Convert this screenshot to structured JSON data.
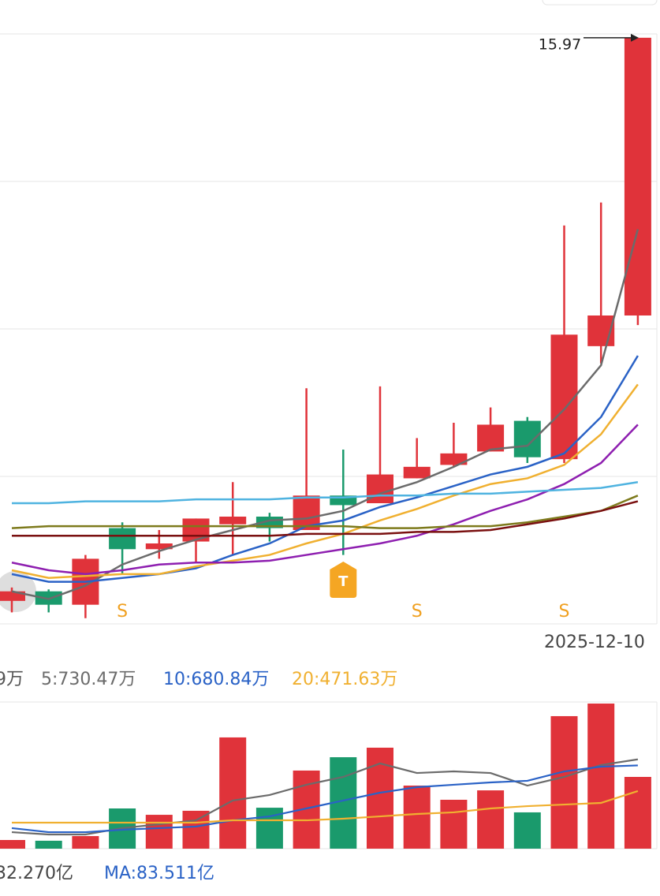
{
  "chart_data": [
    {
      "type": "candlestick",
      "categories": [
        null,
        null,
        null,
        null,
        null,
        null,
        null,
        null,
        null,
        null,
        null,
        null,
        null,
        null,
        null,
        null,
        null,
        "2025-12-10"
      ],
      "open": [
        13.03,
        13.08,
        13.01,
        13.41,
        13.3,
        13.34,
        13.43,
        13.47,
        13.4,
        13.58,
        13.54,
        13.67,
        13.74,
        13.81,
        13.97,
        13.77,
        14.36,
        14.52
      ],
      "high": [
        13.1,
        13.09,
        13.27,
        13.44,
        13.4,
        13.46,
        13.65,
        13.49,
        14.14,
        13.82,
        14.15,
        13.88,
        13.96,
        14.04,
        13.99,
        14.99,
        15.11,
        15.97
      ],
      "low": [
        12.97,
        12.97,
        12.94,
        13.17,
        13.25,
        13.23,
        13.27,
        13.34,
        13.4,
        13.27,
        13.54,
        13.67,
        13.73,
        13.81,
        13.75,
        13.75,
        14.27,
        14.47
      ],
      "close": [
        13.08,
        13.01,
        13.25,
        13.3,
        13.33,
        13.46,
        13.47,
        13.41,
        13.58,
        13.53,
        13.69,
        13.73,
        13.8,
        13.95,
        13.78,
        14.42,
        14.52,
        15.97
      ],
      "up_color": "#e0333a",
      "down_color": "#1a9a6c",
      "ylim": [
        12.91,
        15.99
      ],
      "grid": true,
      "lines": [
        {
          "color": "#6b6b6b",
          "values": [
            13.08,
            13.04,
            13.11,
            13.22,
            13.29,
            13.35,
            13.4,
            13.45,
            13.46,
            13.5,
            13.59,
            13.65,
            13.73,
            13.82,
            13.84,
            14.03,
            14.26,
            14.97
          ]
        },
        {
          "color": "#2a62c6",
          "values": [
            13.17,
            13.13,
            13.13,
            13.15,
            13.17,
            13.2,
            13.27,
            13.33,
            13.42,
            13.45,
            13.52,
            13.57,
            13.63,
            13.69,
            13.73,
            13.8,
            13.99,
            14.31
          ]
        },
        {
          "color": "#f0b030",
          "values": [
            13.19,
            13.15,
            13.16,
            13.17,
            13.17,
            13.21,
            13.24,
            13.27,
            13.33,
            13.38,
            13.45,
            13.51,
            13.58,
            13.64,
            13.67,
            13.74,
            13.9,
            14.16
          ]
        },
        {
          "color": "#8e1fb0",
          "values": [
            13.23,
            13.19,
            13.17,
            13.19,
            13.22,
            13.23,
            13.23,
            13.24,
            13.27,
            13.3,
            13.33,
            13.37,
            13.43,
            13.5,
            13.56,
            13.64,
            13.75,
            13.95
          ]
        },
        {
          "color": "#4fb3e0",
          "values": [
            13.54,
            13.54,
            13.55,
            13.55,
            13.55,
            13.56,
            13.56,
            13.56,
            13.57,
            13.57,
            13.58,
            13.58,
            13.59,
            13.59,
            13.6,
            13.61,
            13.62,
            13.65
          ]
        },
        {
          "color": "#7d7a1c",
          "values": [
            13.41,
            13.42,
            13.42,
            13.42,
            13.42,
            13.42,
            13.42,
            13.42,
            13.42,
            13.42,
            13.41,
            13.41,
            13.42,
            13.42,
            13.44,
            13.47,
            13.5,
            13.58
          ]
        },
        {
          "color": "#7a1010",
          "values": [
            13.37,
            13.37,
            13.37,
            13.37,
            13.37,
            13.37,
            13.37,
            13.37,
            13.38,
            13.38,
            13.38,
            13.39,
            13.39,
            13.4,
            13.43,
            13.46,
            13.5,
            13.55
          ]
        }
      ],
      "signals": [
        null,
        null,
        null,
        "S",
        null,
        null,
        null,
        null,
        null,
        null,
        null,
        "S",
        null,
        null,
        null,
        "S",
        null,
        null
      ],
      "badges": [
        null,
        null,
        null,
        null,
        null,
        null,
        null,
        null,
        null,
        "T",
        null,
        null,
        null,
        null,
        null,
        null,
        null,
        null
      ]
    },
    {
      "type": "bar",
      "values": [
        71,
        65,
        103,
        329,
        277,
        310,
        910,
        335,
        639,
        748,
        826,
        516,
        400,
        477,
        297,
        1084,
        1187,
        587
      ],
      "colors": [
        "#e0333a",
        "#1a9a6c",
        "#e0333a",
        "#1a9a6c",
        "#e0333a",
        "#e0333a",
        "#e0333a",
        "#1a9a6c",
        "#e0333a",
        "#1a9a6c",
        "#e0333a",
        "#e0333a",
        "#e0333a",
        "#e0333a",
        "#1a9a6c",
        "#e0333a",
        "#e0333a",
        "#e0333a"
      ],
      "value_text": "9万",
      "series": [
        {
          "name": "5:730.47万",
          "color": "#6b6b6b",
          "values": [
            135,
            116,
            116,
            168,
            200,
            232,
            394,
            439,
            523,
            587,
            697,
            619,
            632,
            619,
            516,
            587,
            684,
            730.47
          ]
        },
        {
          "name": "10:680.84万",
          "color": "#2a62c6",
          "values": [
            168,
            135,
            135,
            155,
            168,
            181,
            232,
            264,
            329,
            394,
            458,
            503,
            523,
            542,
            555,
            632,
            671,
            680.84
          ]
        },
        {
          "name": "20:471.63万",
          "color": "#f0b030",
          "values": [
            213,
            213,
            213,
            213,
            213,
            213,
            232,
            232,
            232,
            245,
            264,
            284,
            297,
            329,
            348,
            361,
            374,
            471.63
          ]
        }
      ]
    },
    {
      "type": "amount",
      "labels": [
        "32.270亿",
        "MA:83.511亿"
      ],
      "colors": [
        "#444444",
        "#2a62c6"
      ]
    }
  ]
}
